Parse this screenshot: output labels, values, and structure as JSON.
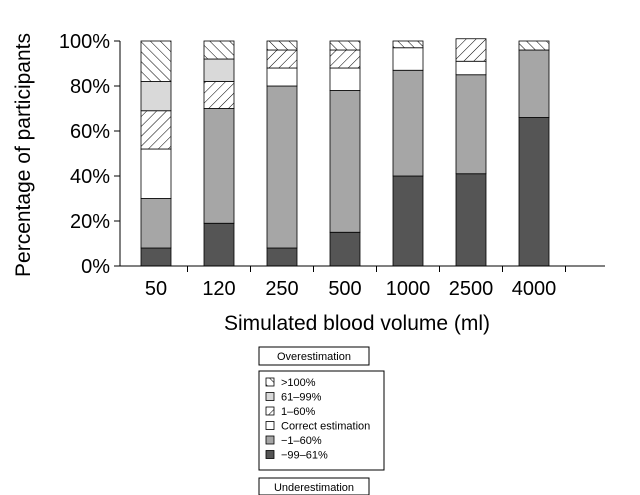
{
  "chart_data": {
    "type": "bar",
    "stacked": true,
    "categories": [
      "50",
      "120",
      "250",
      "500",
      "1000",
      "2500",
      "4000"
    ],
    "xlabel": "Simulated blood volume (ml)",
    "ylabel": "Percentage of participants",
    "ylim": [
      0,
      100
    ],
    "yticks": [
      "0%",
      "20%",
      "40%",
      "60%",
      "80%",
      "100%"
    ],
    "series": [
      {
        "name": "−99–61%",
        "color": "#555555",
        "pattern": "solid-dark",
        "values": [
          8,
          19,
          8,
          15,
          40,
          41,
          66
        ]
      },
      {
        "name": "−1–60%",
        "color": "#a6a6a6",
        "pattern": "solid-mid",
        "values": [
          22,
          51,
          72,
          63,
          47,
          44,
          30
        ]
      },
      {
        "name": "Correct estimation",
        "color": "#ffffff",
        "pattern": "white",
        "values": [
          22,
          0,
          8,
          10,
          10,
          6,
          0
        ]
      },
      {
        "name": "1–60%",
        "color": "#ffffff",
        "pattern": "backslash-hatch",
        "values": [
          17,
          12,
          8,
          8,
          0,
          10,
          0
        ]
      },
      {
        "name": "61–99%",
        "color": "#d9d9d9",
        "pattern": "solid-light",
        "values": [
          13,
          10,
          0,
          0,
          0,
          0,
          0
        ]
      },
      {
        "name": ">100%",
        "color": "#ffffff",
        "pattern": "slash-hatch",
        "values": [
          18,
          8,
          4,
          4,
          3,
          0,
          4
        ]
      }
    ],
    "legend": {
      "top_caption": "Overestimation",
      "bottom_caption": "Underestimation",
      "order": [
        ">100%",
        "61–99%",
        "1–60%",
        "Correct estimation",
        "−1–60%",
        "−99–61%"
      ]
    }
  }
}
